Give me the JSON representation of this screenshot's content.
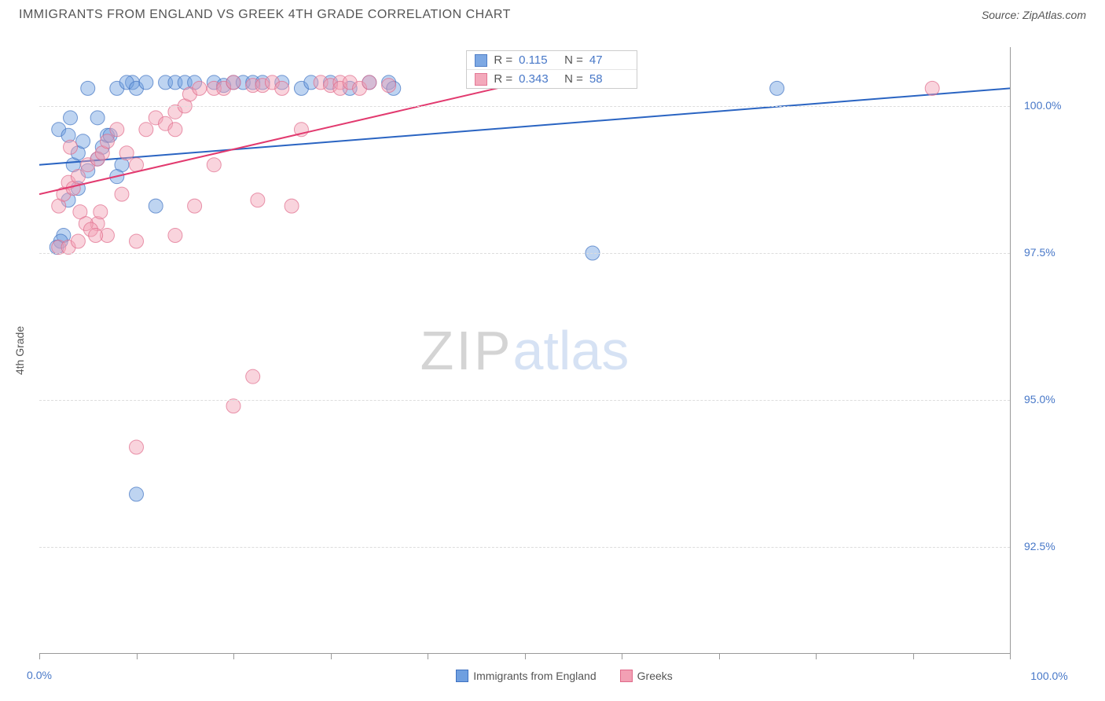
{
  "header": {
    "title": "IMMIGRANTS FROM ENGLAND VS GREEK 4TH GRADE CORRELATION CHART",
    "source_prefix": "Source: ",
    "source_name": "ZipAtlas.com"
  },
  "watermark": {
    "part1": "ZIP",
    "part2": "atlas"
  },
  "chart": {
    "type": "scatter",
    "y_label": "4th Grade",
    "xlim": [
      0,
      100
    ],
    "ylim": [
      90.7,
      101.0
    ],
    "y_ticks": [
      92.5,
      95.0,
      97.5,
      100.0
    ],
    "y_tick_labels": [
      "92.5%",
      "95.0%",
      "97.5%",
      "100.0%"
    ],
    "x_ticks": [
      0,
      10,
      20,
      30,
      40,
      50,
      60,
      70,
      80,
      90,
      100
    ],
    "x_tick_labels_shown": {
      "left": "0.0%",
      "right": "100.0%"
    },
    "background_color": "#ffffff",
    "grid_color": "#dddddd",
    "axis_color": "#999999",
    "tick_label_color": "#4878c8",
    "marker_radius": 9,
    "marker_opacity": 0.45,
    "line_width": 2,
    "series": [
      {
        "name": "Immigrants from England",
        "fill": "#6f9fe0",
        "stroke": "#3f72c2",
        "line_color": "#2a64c2",
        "regression": {
          "x1": 0,
          "y1": 99.0,
          "x2": 100,
          "y2": 100.3
        },
        "stats": {
          "R": "0.115",
          "N": "47"
        },
        "points": [
          [
            2,
            99.6
          ],
          [
            3,
            99.5
          ],
          [
            3.2,
            99.8
          ],
          [
            3.5,
            99.0
          ],
          [
            4,
            99.2
          ],
          [
            4.5,
            99.4
          ],
          [
            5,
            98.9
          ],
          [
            3,
            98.4
          ],
          [
            4,
            98.6
          ],
          [
            5,
            100.3
          ],
          [
            6,
            99.1
          ],
          [
            6.5,
            99.3
          ],
          [
            7,
            99.5
          ],
          [
            8,
            100.3
          ],
          [
            9.6,
            100.4
          ],
          [
            9,
            100.4
          ],
          [
            8.5,
            99.0
          ],
          [
            10,
            100.3
          ],
          [
            11,
            100.4
          ],
          [
            12,
            98.3
          ],
          [
            13,
            100.4
          ],
          [
            14,
            100.4
          ],
          [
            15,
            100.4
          ],
          [
            16,
            100.4
          ],
          [
            10,
            93.4
          ],
          [
            18,
            100.4
          ],
          [
            19,
            100.35
          ],
          [
            20,
            100.4
          ],
          [
            21,
            100.4
          ],
          [
            22,
            100.4
          ],
          [
            23,
            100.4
          ],
          [
            25,
            100.4
          ],
          [
            27,
            100.3
          ],
          [
            28,
            100.4
          ],
          [
            30,
            100.4
          ],
          [
            32,
            100.3
          ],
          [
            34,
            100.4
          ],
          [
            36,
            100.4
          ],
          [
            36.5,
            100.3
          ],
          [
            57,
            97.5
          ],
          [
            76,
            100.3
          ],
          [
            2.5,
            97.8
          ],
          [
            2.2,
            97.7
          ],
          [
            1.8,
            97.6
          ],
          [
            6,
            99.8
          ],
          [
            7.3,
            99.5
          ],
          [
            8,
            98.8
          ]
        ]
      },
      {
        "name": "Greeks",
        "fill": "#f2a0b4",
        "stroke": "#e06a8a",
        "line_color": "#e23a6f",
        "regression": {
          "x1": 0,
          "y1": 98.5,
          "x2": 55,
          "y2": 100.6
        },
        "stats": {
          "R": "0.343",
          "N": "58"
        },
        "points": [
          [
            2,
            98.3
          ],
          [
            2.5,
            98.5
          ],
          [
            3,
            98.7
          ],
          [
            3.5,
            98.6
          ],
          [
            4,
            98.8
          ],
          [
            5,
            99.0
          ],
          [
            6,
            99.1
          ],
          [
            6.5,
            99.2
          ],
          [
            7,
            99.4
          ],
          [
            8,
            99.6
          ],
          [
            2,
            97.6
          ],
          [
            3,
            97.6
          ],
          [
            4,
            97.7
          ],
          [
            3.2,
            99.3
          ],
          [
            7,
            97.8
          ],
          [
            10,
            99.0
          ],
          [
            10,
            97.7
          ],
          [
            6,
            98.0
          ],
          [
            11,
            99.6
          ],
          [
            12,
            99.8
          ],
          [
            13,
            99.7
          ],
          [
            14,
            99.9
          ],
          [
            14,
            97.8
          ],
          [
            15,
            100.0
          ],
          [
            16,
            98.3
          ],
          [
            15.5,
            100.2
          ],
          [
            16.5,
            100.3
          ],
          [
            18,
            100.3
          ],
          [
            19,
            100.3
          ],
          [
            20,
            100.4
          ],
          [
            18,
            99.0
          ],
          [
            22,
            100.35
          ],
          [
            22,
            95.4
          ],
          [
            23,
            100.35
          ],
          [
            24,
            100.4
          ],
          [
            25,
            100.3
          ],
          [
            22.5,
            98.4
          ],
          [
            26,
            98.3
          ],
          [
            27,
            99.6
          ],
          [
            29,
            100.4
          ],
          [
            30,
            100.35
          ],
          [
            31,
            100.4
          ],
          [
            31,
            100.3
          ],
          [
            32,
            100.4
          ],
          [
            14,
            99.6
          ],
          [
            33,
            100.3
          ],
          [
            34,
            100.4
          ],
          [
            36,
            100.35
          ],
          [
            20,
            94.9
          ],
          [
            10,
            94.2
          ],
          [
            92,
            100.3
          ],
          [
            4.2,
            98.2
          ],
          [
            4.8,
            98.0
          ],
          [
            5.3,
            97.9
          ],
          [
            5.8,
            97.8
          ],
          [
            6.3,
            98.2
          ],
          [
            8.5,
            98.5
          ],
          [
            9,
            99.2
          ]
        ]
      }
    ],
    "legend": {
      "series1_label": "Immigrants from England",
      "series2_label": "Greeks"
    },
    "stats_box": {
      "R_label": "R =",
      "N_label": "N ="
    }
  }
}
